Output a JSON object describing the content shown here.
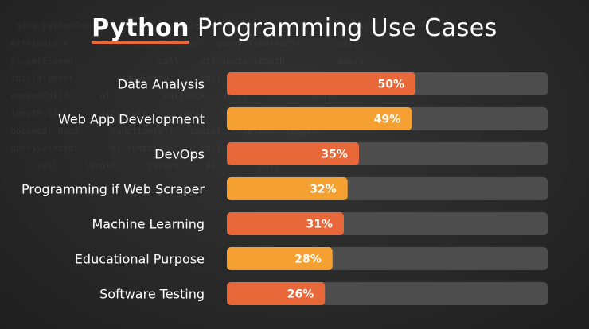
{
  "title": {
    "bold": "Python",
    "rest": " Programming Use Cases"
  },
  "colors": {
    "orange": "#e8683a",
    "amber": "#f4a132",
    "track": "#4d4d4d",
    "background": "#2b2b2b"
  },
  "chart_data": {
    "type": "bar",
    "orientation": "horizontal",
    "title": "Python Programming Use Cases",
    "categories": [
      "Data Analysis",
      "Web App Development",
      "DevOps",
      "Programming if Web Scraper",
      "Machine Learning",
      "Educational Purpose",
      "Software Testing"
    ],
    "values": [
      50,
      49,
      35,
      32,
      31,
      28,
      26
    ],
    "value_labels": [
      "50%",
      "49%",
      "35%",
      "32%",
      "31%",
      "28%",
      "26%"
    ],
    "xlim": [
      0,
      85
    ],
    "unit": "%",
    "grid": false,
    "legend": "none",
    "bar_colors": [
      "#e8683a",
      "#f4a132",
      "#e8683a",
      "#f4a132",
      "#e8683a",
      "#f4a132",
      "#e8683a"
    ]
  }
}
